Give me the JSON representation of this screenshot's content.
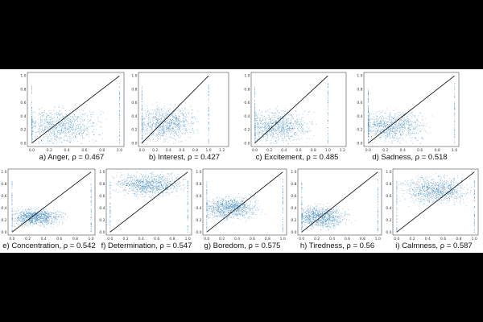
{
  "figure": {
    "background": "#000000",
    "point_color": "#1f77b4",
    "diagonal_color": "#000000"
  },
  "chart_data": [
    {
      "type": "scatter",
      "label": "a) Anger, ρ = 0.467",
      "emotion": "Anger",
      "rho": 0.467,
      "xlim": [
        -0.05,
        1.05
      ],
      "ylim": [
        -0.05,
        1.05
      ],
      "xticks": [
        "0.0",
        "0.2",
        "0.4",
        "0.6",
        "0.8",
        "1.0"
      ],
      "yticks": [
        "0.0",
        "0.2",
        "0.4",
        "0.6",
        "0.8",
        "1.0"
      ],
      "diagonal": [
        [
          0,
          0
        ],
        [
          1,
          1
        ]
      ],
      "cloud_center": [
        0.3,
        0.25
      ],
      "cloud_spread": [
        0.3,
        0.18
      ]
    },
    {
      "type": "scatter",
      "label": "b) Interest, ρ = 0.427",
      "emotion": "Interest",
      "rho": 0.427,
      "xlim": [
        -0.05,
        1.3
      ],
      "ylim": [
        -0.05,
        1.05
      ],
      "xticks": [
        "0.0",
        "0.2",
        "0.4",
        "0.6",
        "0.8",
        "1.0",
        "1.2"
      ],
      "yticks": [
        "0.0",
        "0.2",
        "0.4",
        "0.6",
        "0.8",
        "1.0"
      ],
      "diagonal": [
        [
          0,
          0
        ],
        [
          1,
          1
        ]
      ],
      "cloud_center": [
        0.35,
        0.3
      ],
      "cloud_spread": [
        0.3,
        0.17
      ]
    },
    {
      "type": "scatter",
      "label": "c) Excitement, ρ = 0.485",
      "emotion": "Excitement",
      "rho": 0.485,
      "xlim": [
        -0.05,
        1.25
      ],
      "ylim": [
        -0.05,
        1.05
      ],
      "xticks": [
        "0.0",
        "0.2",
        "0.4",
        "0.6",
        "0.8",
        "1.0",
        "1.2"
      ],
      "yticks": [
        "0.0",
        "0.2",
        "0.4",
        "0.6",
        "0.8",
        "1.0"
      ],
      "diagonal": [
        [
          0,
          0
        ],
        [
          1,
          1
        ]
      ],
      "cloud_center": [
        0.3,
        0.25
      ],
      "cloud_spread": [
        0.3,
        0.17
      ]
    },
    {
      "type": "scatter",
      "label": "d) Sadness, ρ = 0.518",
      "emotion": "Sadness",
      "rho": 0.518,
      "xlim": [
        -0.05,
        1.05
      ],
      "ylim": [
        -0.05,
        1.05
      ],
      "xticks": [
        "0.0",
        "0.2",
        "0.4",
        "0.6",
        "0.8",
        "1.0"
      ],
      "yticks": [
        "0.0",
        "0.2",
        "0.4",
        "0.6",
        "0.8",
        "1.0"
      ],
      "diagonal": [
        [
          0,
          0
        ],
        [
          1,
          1
        ]
      ],
      "cloud_center": [
        0.25,
        0.25
      ],
      "cloud_spread": [
        0.28,
        0.16
      ]
    },
    {
      "type": "scatter",
      "label": "e) Concentration, ρ = 0.542",
      "emotion": "Concentration",
      "rho": 0.542,
      "xlim": [
        -0.05,
        1.05
      ],
      "ylim": [
        -0.05,
        1.05
      ],
      "xticks": [
        "0.0",
        "0.2",
        "0.4",
        "0.6",
        "0.8",
        "1.0"
      ],
      "yticks": [
        "0.0",
        "0.2",
        "0.4",
        "0.6",
        "0.8",
        "1.0"
      ],
      "diagonal": [
        [
          0,
          0
        ],
        [
          1,
          1
        ]
      ],
      "cloud_center": [
        0.3,
        0.25
      ],
      "cloud_spread": [
        0.22,
        0.1
      ]
    },
    {
      "type": "scatter",
      "label": "f) Determination, ρ = 0.547",
      "emotion": "Determination",
      "rho": 0.547,
      "xlim": [
        -0.05,
        1.05
      ],
      "ylim": [
        -0.05,
        1.05
      ],
      "xticks": [
        "0.0",
        "0.2",
        "0.4",
        "0.6",
        "0.8",
        "1.0"
      ],
      "yticks": [
        "0.0",
        "0.2",
        "0.4",
        "0.6",
        "0.8",
        "1.0"
      ],
      "diagonal": [
        [
          0,
          0
        ],
        [
          1,
          1
        ]
      ],
      "cloud_center": [
        0.5,
        0.8
      ],
      "cloud_spread": [
        0.3,
        0.13
      ]
    },
    {
      "type": "scatter",
      "label": "g) Boredom, ρ = 0.575",
      "emotion": "Boredom",
      "rho": 0.575,
      "xlim": [
        -0.05,
        1.05
      ],
      "ylim": [
        -0.05,
        1.05
      ],
      "xticks": [
        "0.0",
        "0.2",
        "0.4",
        "0.6",
        "0.8",
        "1.0"
      ],
      "yticks": [
        "0.0",
        "0.2",
        "0.4",
        "0.6",
        "0.8",
        "1.0"
      ],
      "diagonal": [
        [
          0,
          0
        ],
        [
          1,
          1
        ]
      ],
      "cloud_center": [
        0.3,
        0.4
      ],
      "cloud_spread": [
        0.25,
        0.13
      ]
    },
    {
      "type": "scatter",
      "label": "h) Tiredness, ρ = 0.56",
      "emotion": "Tiredness",
      "rho": 0.56,
      "xlim": [
        -0.05,
        1.05
      ],
      "ylim": [
        -0.05,
        1.05
      ],
      "xticks": [
        "0.0",
        "0.2",
        "0.4",
        "0.6",
        "0.8",
        "1.0"
      ],
      "yticks": [
        "0.0",
        "0.2",
        "0.4",
        "0.6",
        "0.8",
        "1.0"
      ],
      "diagonal": [
        [
          0,
          0
        ],
        [
          1,
          1
        ]
      ],
      "cloud_center": [
        0.25,
        0.25
      ],
      "cloud_spread": [
        0.23,
        0.13
      ]
    },
    {
      "type": "scatter",
      "label": "i) Calmness, ρ = 0.587",
      "emotion": "Calmness",
      "rho": 0.587,
      "xlim": [
        -0.05,
        1.05
      ],
      "ylim": [
        -0.05,
        1.05
      ],
      "xticks": [
        "0.0",
        "0.2",
        "0.4",
        "0.6",
        "0.8",
        "1.0"
      ],
      "yticks": [
        "0.0",
        "0.2",
        "0.4",
        "0.6",
        "0.8",
        "1.0"
      ],
      "diagonal": [
        [
          0,
          0
        ],
        [
          1,
          1
        ]
      ],
      "cloud_center": [
        0.5,
        0.7
      ],
      "cloud_spread": [
        0.3,
        0.15
      ]
    }
  ]
}
